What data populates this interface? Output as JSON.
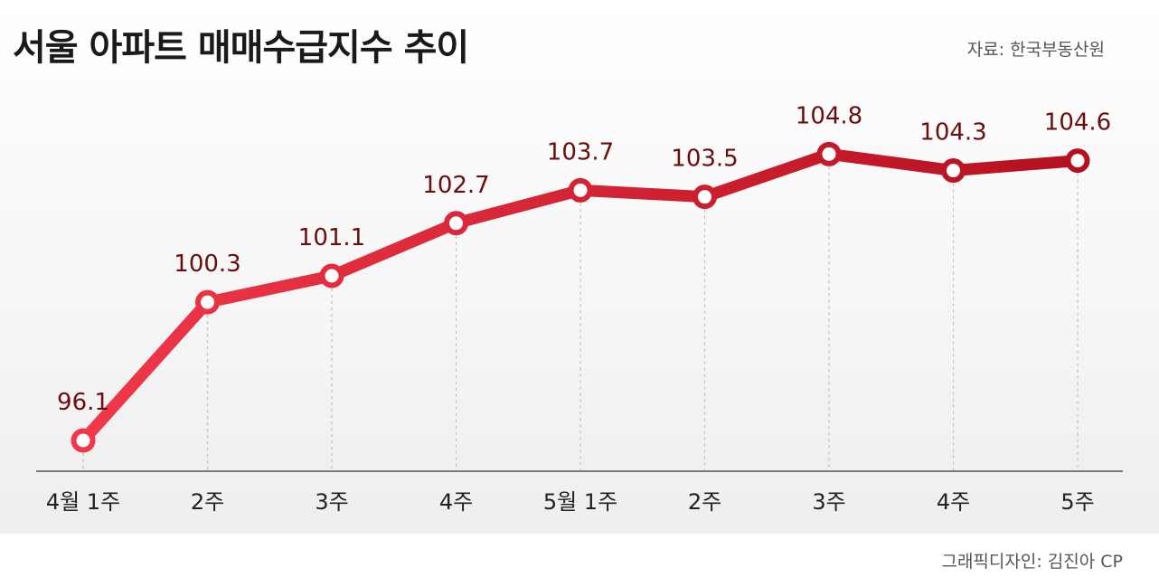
{
  "title": "서울 아파트 매매수급지수 추이",
  "source": "자료: 한국부동산원",
  "credit": "그래픽디자인: 김진아 CP",
  "colors": {
    "line_start": "#f0384a",
    "line_end": "#b5101f",
    "label": "#6b0d0d"
  },
  "chart_data": {
    "type": "line",
    "title": "서울 아파트 매매수급지수 추이",
    "xlabel": "",
    "ylabel": "",
    "categories": [
      "4월 1주",
      "2주",
      "3주",
      "4주",
      "5월 1주",
      "2주",
      "3주",
      "4주",
      "5주"
    ],
    "series": [
      {
        "values": [
          96.1,
          100.3,
          101.1,
          102.7,
          103.7,
          103.5,
          104.8,
          104.3,
          104.6
        ]
      }
    ],
    "data_labels": [
      "96.1",
      "100.3",
      "101.1",
      "102.7",
      "103.7",
      "103.5",
      "104.8",
      "104.3",
      "104.6"
    ],
    "grid": "vertical dotted guide lines",
    "legend": "none"
  }
}
